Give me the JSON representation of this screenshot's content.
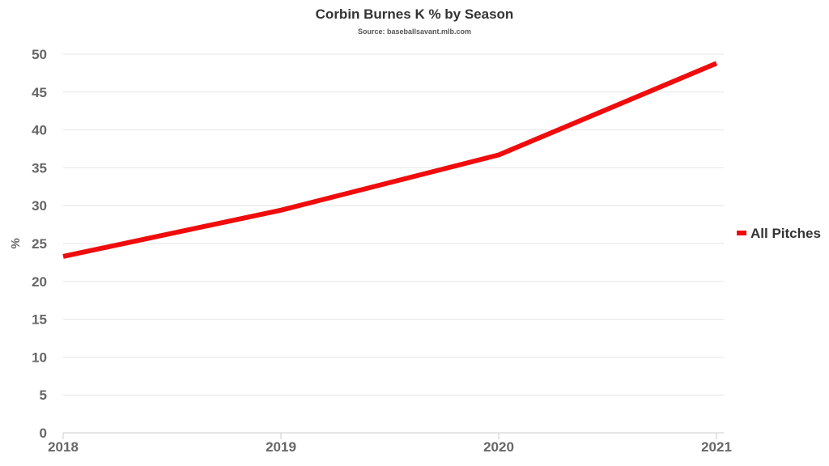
{
  "chart_data": {
    "type": "line",
    "title": "Corbin Burnes K % by Season",
    "subtitle": "Source: baseballsavant.mlb.com",
    "xlabel": "",
    "ylabel": "%",
    "x": [
      "2018",
      "2019",
      "2020",
      "2021"
    ],
    "series": [
      {
        "name": "All Pitches",
        "values": [
          23.3,
          29.4,
          36.7,
          48.8
        ],
        "color": "#f00c0c"
      }
    ],
    "ylim": [
      0,
      50
    ],
    "yticks": [
      0,
      5,
      10,
      15,
      20,
      25,
      30,
      35,
      40,
      45,
      50
    ],
    "grid": true,
    "legend_position": "right"
  }
}
